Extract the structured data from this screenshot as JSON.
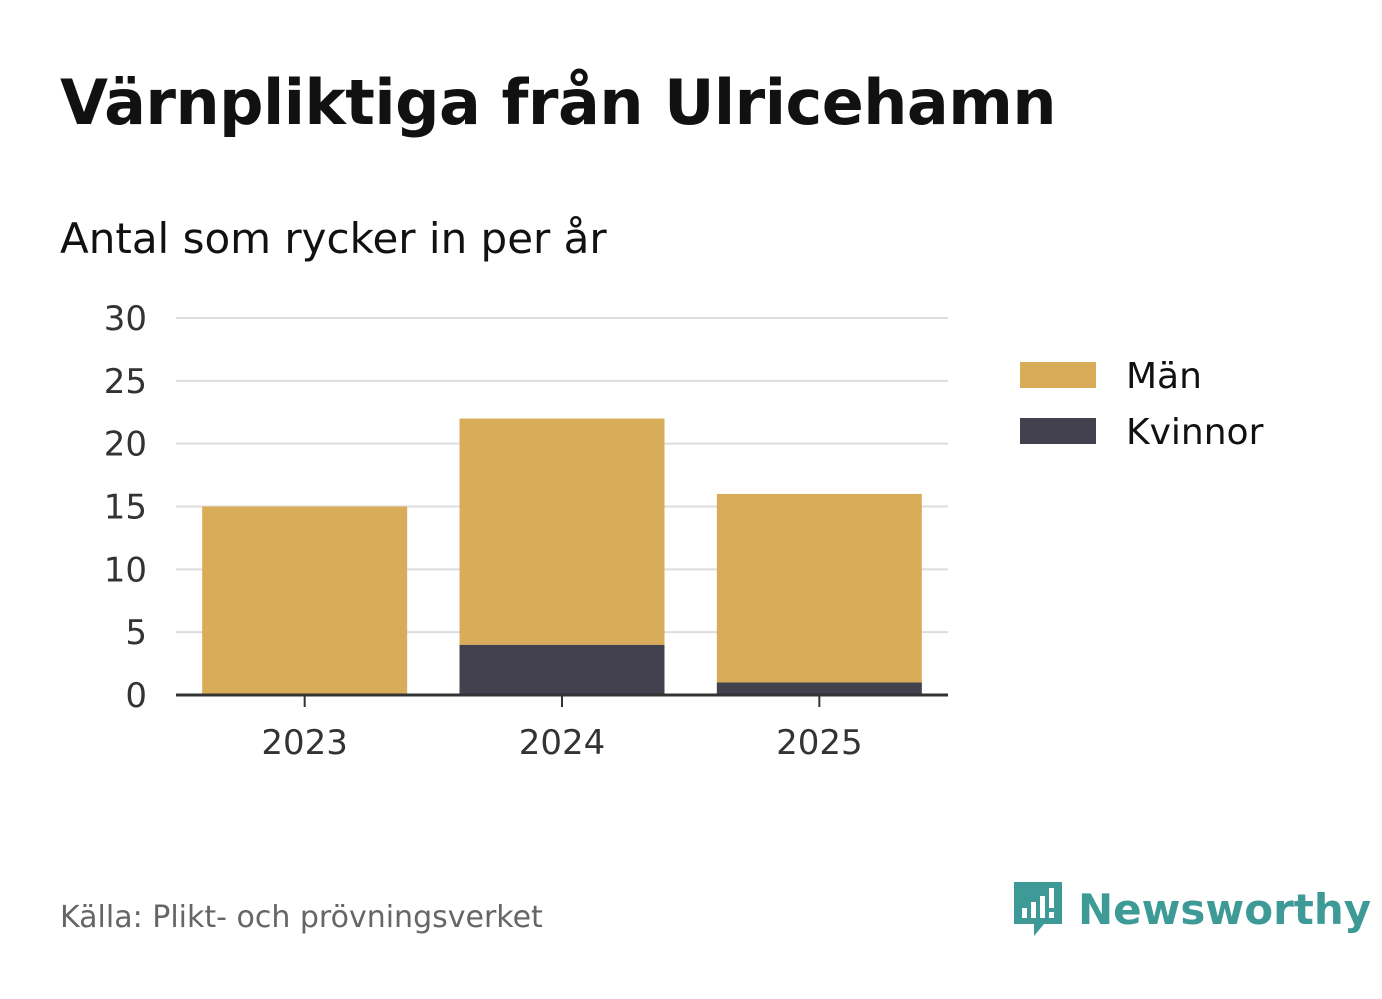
{
  "title": "Värnpliktiga från Ulricehamn",
  "subtitle": "Antal som rycker in per år",
  "source": "Källa: Plikt- och prövningsverket",
  "brand": {
    "name": "Newsworthy",
    "icon": "newsworthy-logo-icon",
    "color": "#3e9a96"
  },
  "chart_data": {
    "type": "bar",
    "stacked": true,
    "categories": [
      "2023",
      "2024",
      "2025"
    ],
    "series": [
      {
        "name": "Kvinnor",
        "values": [
          0,
          4,
          1
        ],
        "color": "#43414d"
      },
      {
        "name": "Män",
        "values": [
          15,
          18,
          15
        ],
        "color": "#d9ac5a"
      }
    ],
    "legend_order": [
      "Män",
      "Kvinnor"
    ],
    "y_ticks": [
      "0",
      "5",
      "10",
      "15",
      "20",
      "25",
      "30"
    ],
    "ylim": [
      0,
      30
    ],
    "grid": true,
    "legend_position": "right"
  }
}
